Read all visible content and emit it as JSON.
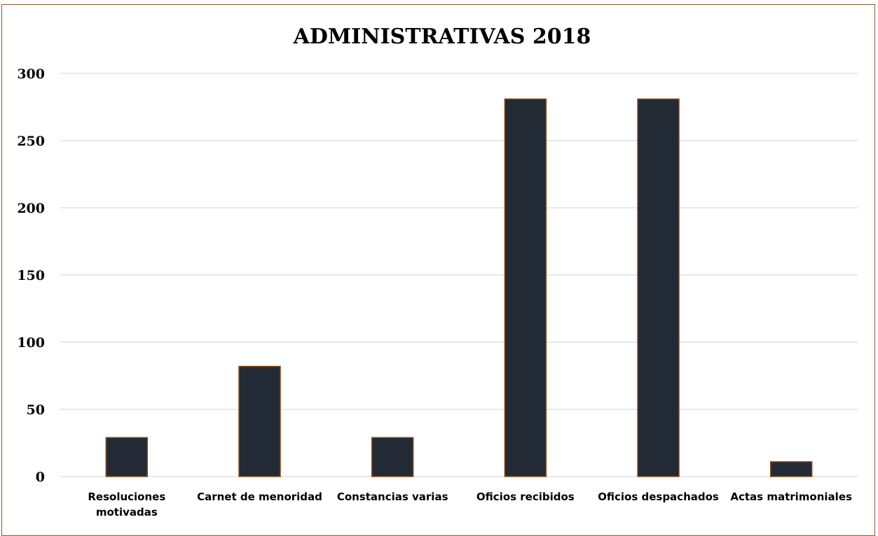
{
  "chart_data": {
    "type": "bar",
    "title": "ADMINISTRATIVAS 2018",
    "categories": [
      [
        "Resoluciones",
        "motivadas"
      ],
      [
        "Carnet de menoridad"
      ],
      [
        "Constancias varias"
      ],
      [
        "Oficios recibidos"
      ],
      [
        "Oficios despachados"
      ],
      [
        "Actas matrimoniales"
      ]
    ],
    "values": [
      29,
      82,
      29,
      281,
      281,
      11
    ],
    "ylim": [
      0,
      300
    ],
    "yticks": [
      "0",
      "50",
      "100",
      "150",
      "200",
      "250",
      "300"
    ],
    "ytick_values": [
      0,
      50,
      100,
      150,
      200,
      250,
      300
    ],
    "grid": true,
    "legend": "none",
    "colors": {
      "bar_fill": "#222a35",
      "bar_border": "#8a4b1a",
      "frame_border": "#8a5a2b",
      "gridline": "#d9d9d9"
    }
  }
}
